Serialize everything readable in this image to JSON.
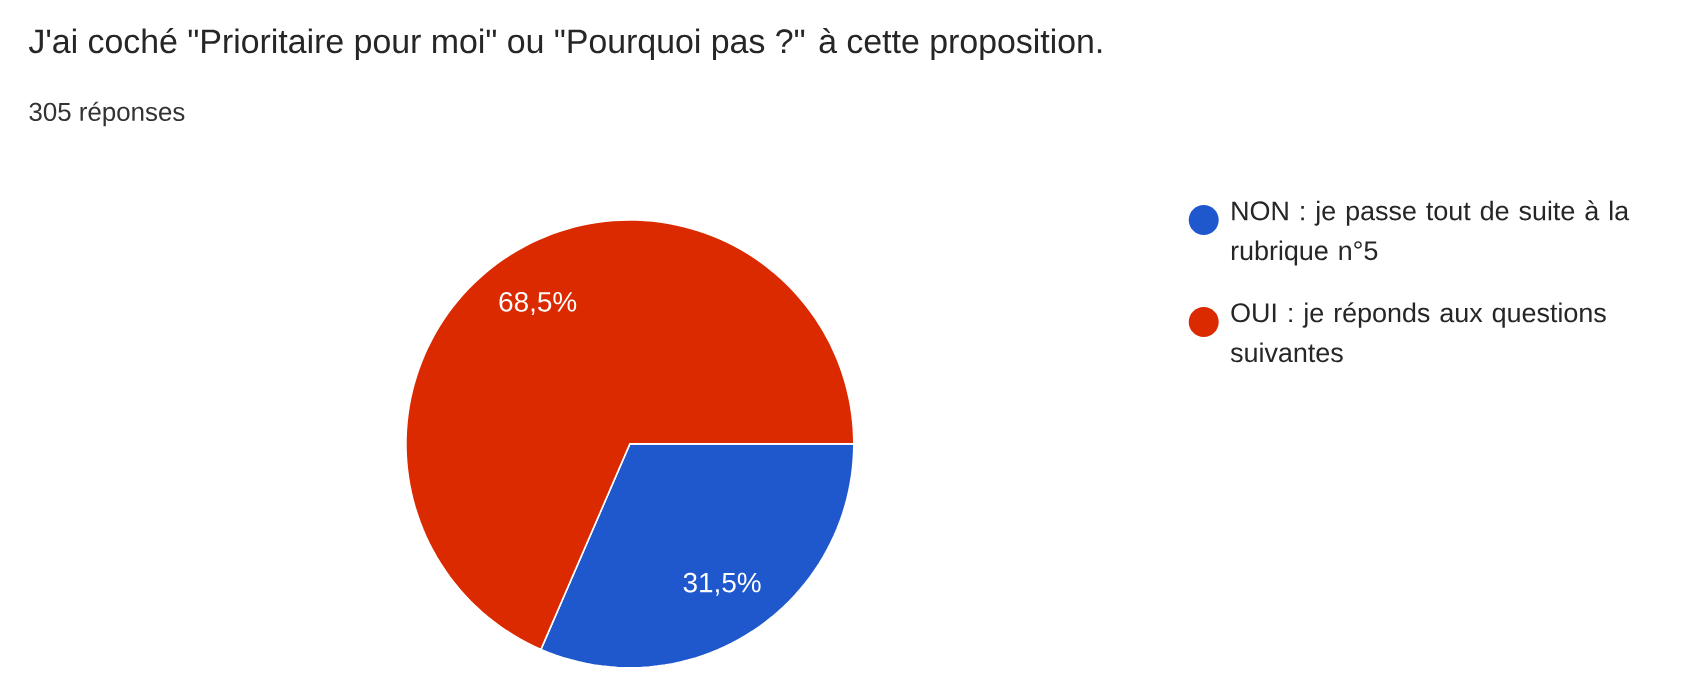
{
  "chart_data": {
    "type": "pie",
    "title": "J'ai coché \"Prioritaire pour moi\" ou \"Pourquoi pas ?\" à cette proposition.",
    "subtitle": "305 réponses",
    "categories": [
      "NON : je passe tout de suite à la rubrique n°5",
      "OUI : je réponds aux questions suivantes"
    ],
    "values": [
      31.5,
      68.5
    ],
    "colors": [
      "#1f57cd",
      "#dc2a00"
    ],
    "value_labels": [
      "31,5%",
      "68,5%"
    ],
    "legend": "right"
  }
}
